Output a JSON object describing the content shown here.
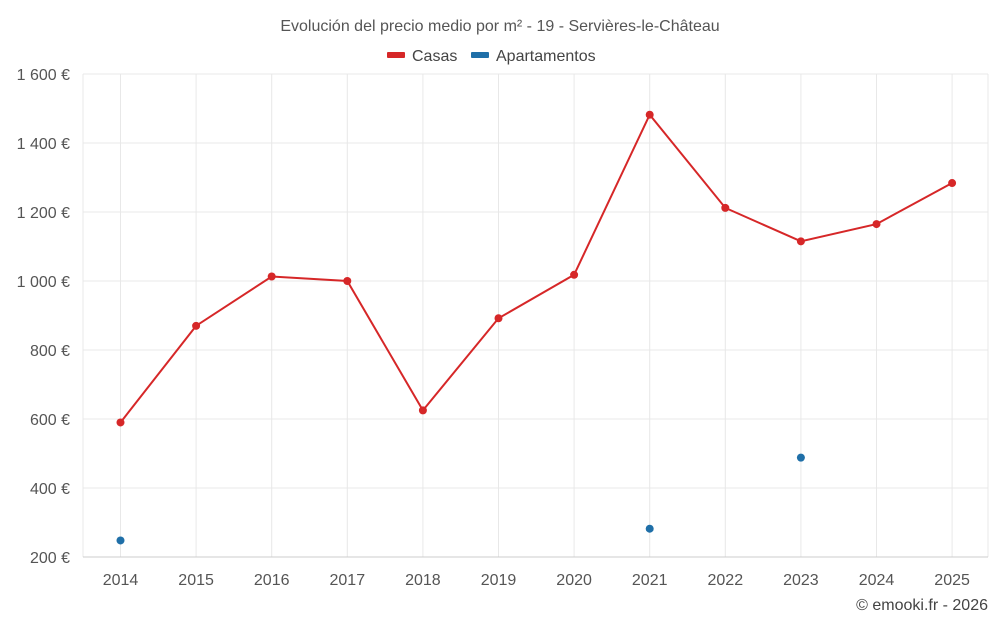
{
  "chart_data": {
    "type": "line",
    "title": "Evolución del precio medio por m² - 19 - Servières-le-Château",
    "categories": [
      "2014",
      "2015",
      "2016",
      "2017",
      "2018",
      "2019",
      "2020",
      "2021",
      "2022",
      "2023",
      "2024",
      "2025"
    ],
    "series": [
      {
        "name": "Casas",
        "color": "#d62728",
        "mode": "line+markers",
        "values": [
          590,
          870,
          1013,
          1000,
          625,
          892,
          1018,
          1482,
          1212,
          1115,
          1165,
          1284
        ]
      },
      {
        "name": "Apartamentos",
        "color": "#1f6fa8",
        "mode": "markers",
        "values": [
          248,
          null,
          null,
          null,
          null,
          null,
          null,
          282,
          null,
          488,
          null,
          null
        ]
      }
    ],
    "ylim": [
      200,
      1600
    ],
    "yticks": [
      200,
      400,
      600,
      800,
      1000,
      1200,
      1400,
      1600
    ],
    "ytick_labels": [
      "200 €",
      "400 €",
      "600 €",
      "800 €",
      "1 000 €",
      "1 200 €",
      "1 400 €",
      "1 600 €"
    ],
    "xlabel": "",
    "ylabel": "",
    "legend_position": "top-center",
    "grid": true
  },
  "credit": "© emooki.fr - 2026"
}
